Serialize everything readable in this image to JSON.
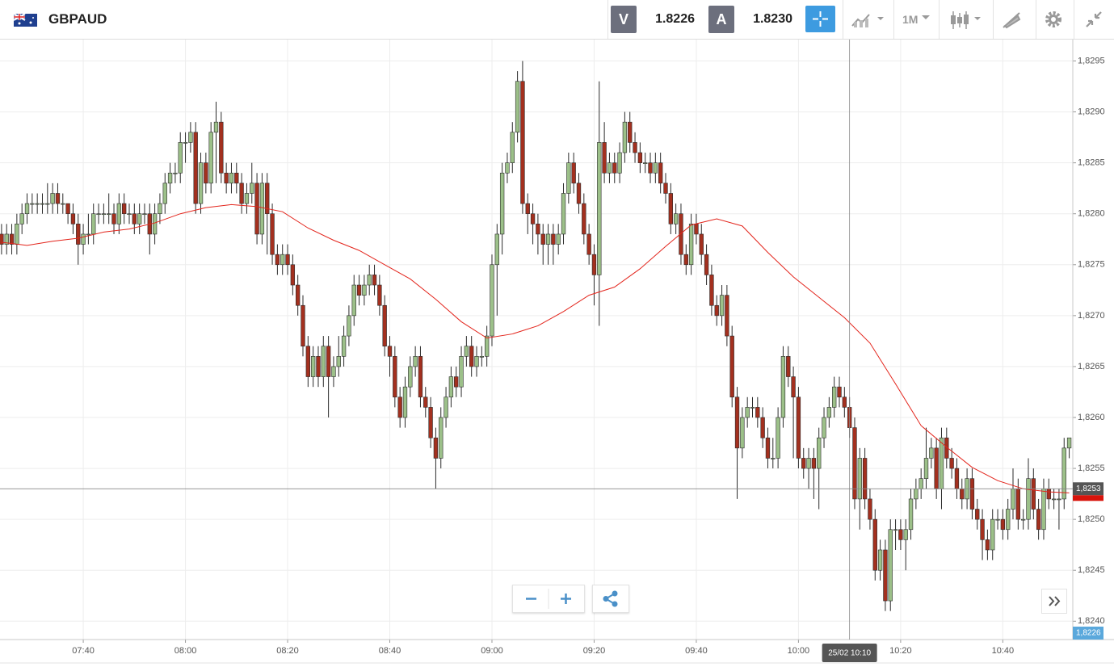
{
  "header": {
    "symbol": "GBPAUD",
    "sell_letter": "V",
    "sell_price": "1.8226",
    "buy_letter": "A",
    "buy_price": "1.8230",
    "timeframe": "1M"
  },
  "chart_data": {
    "type": "candlestick",
    "x": [
      444,
      445,
      446,
      447,
      448,
      449,
      450,
      451,
      452,
      453,
      454,
      455,
      456,
      457,
      458,
      459,
      460,
      461,
      462,
      463,
      464,
      465,
      466,
      467,
      468,
      469,
      470,
      471,
      472,
      473,
      474,
      475,
      476,
      477,
      478,
      479,
      480,
      481,
      482,
      483,
      484,
      485,
      486,
      487,
      488,
      489,
      490,
      491,
      492,
      493,
      494,
      495,
      496,
      497,
      498,
      499,
      500,
      501,
      502,
      503,
      504,
      505,
      506,
      507,
      508,
      509,
      510,
      511,
      512,
      513,
      514,
      515,
      516,
      517,
      518,
      519,
      520,
      521,
      522,
      523,
      524,
      525,
      526,
      527,
      528,
      529,
      530,
      531,
      532,
      533,
      534,
      535,
      536,
      537,
      538,
      539,
      540,
      541,
      542,
      543,
      544,
      545,
      546,
      547,
      548,
      549,
      550,
      551,
      552,
      553,
      554,
      555,
      556,
      557,
      558,
      559,
      560,
      561,
      562,
      563,
      564,
      565,
      566,
      567,
      568,
      569,
      570,
      571,
      572,
      573,
      574,
      575,
      576,
      577,
      578,
      579,
      580,
      581,
      582,
      583,
      584,
      585,
      586,
      587,
      588,
      589,
      590,
      591,
      592,
      593,
      594,
      595,
      596,
      597,
      598,
      599,
      600,
      601,
      602,
      603,
      604,
      605,
      606,
      607,
      608,
      609,
      610,
      611,
      612,
      613,
      614,
      615,
      616,
      617,
      618,
      619,
      620,
      621,
      622,
      623,
      624,
      625,
      626,
      627,
      628,
      629,
      630,
      631,
      632,
      633,
      634,
      635,
      636,
      637,
      638,
      639,
      640,
      641,
      642,
      643,
      644,
      645,
      646,
      647,
      648,
      649,
      650,
      651,
      652,
      653
    ],
    "open": [
      1.8278,
      1.8277,
      1.8278,
      1.8277,
      1.8279,
      1.828,
      1.8281,
      1.8281,
      1.8281,
      1.8281,
      1.8281,
      1.8282,
      1.8281,
      1.8281,
      1.828,
      1.8279,
      1.8277,
      1.8278,
      1.8278,
      1.828,
      1.828,
      1.828,
      1.828,
      1.8279,
      1.8281,
      1.828,
      1.828,
      1.8279,
      1.828,
      1.828,
      1.8278,
      1.828,
      1.8281,
      1.8283,
      1.8284,
      1.8284,
      1.8287,
      1.8287,
      1.8288,
      1.8281,
      1.8285,
      1.8283,
      1.8288,
      1.8289,
      1.8284,
      1.8283,
      1.8284,
      1.8283,
      1.8281,
      1.8282,
      1.8283,
      1.8278,
      1.8283,
      1.828,
      1.8276,
      1.8275,
      1.8276,
      1.8275,
      1.8273,
      1.8271,
      1.8267,
      1.8264,
      1.8266,
      1.8264,
      1.8267,
      1.8264,
      1.8265,
      1.8266,
      1.8268,
      1.827,
      1.8273,
      1.8272,
      1.8273,
      1.8274,
      1.8273,
      1.8271,
      1.8267,
      1.8266,
      1.8262,
      1.826,
      1.8263,
      1.8265,
      1.8266,
      1.8262,
      1.8261,
      1.8258,
      1.8256,
      1.826,
      1.8262,
      1.8264,
      1.8263,
      1.8266,
      1.8267,
      1.8265,
      1.8266,
      1.8266,
      1.8268,
      1.8275,
      1.8278,
      1.8284,
      1.8285,
      1.8288,
      1.8293,
      1.8281,
      1.828,
      1.8279,
      1.8278,
      1.8277,
      1.8278,
      1.8277,
      1.8278,
      1.8282,
      1.8285,
      1.8283,
      1.8281,
      1.8278,
      1.8276,
      1.8274,
      1.8287,
      1.8284,
      1.8285,
      1.8284,
      1.8286,
      1.8289,
      1.8287,
      1.8286,
      1.8285,
      1.8285,
      1.8284,
      1.8285,
      1.8283,
      1.8282,
      1.8279,
      1.828,
      1.8276,
      1.8275,
      1.8279,
      1.8278,
      1.8276,
      1.8274,
      1.8271,
      1.827,
      1.8272,
      1.8268,
      1.8262,
      1.8257,
      1.826,
      1.8261,
      1.8261,
      1.826,
      1.8258,
      1.8256,
      1.8256,
      1.826,
      1.8266,
      1.8264,
      1.8262,
      1.8256,
      1.8255,
      1.8256,
      1.8255,
      1.8258,
      1.826,
      1.8261,
      1.8263,
      1.8262,
      1.8261,
      1.8259,
      1.8252,
      1.8256,
      1.8252,
      1.825,
      1.8245,
      1.8247,
      1.8242,
      1.8249,
      1.8249,
      1.8248,
      1.8249,
      1.8252,
      1.8253,
      1.8254,
      1.8256,
      1.8257,
      1.8253,
      1.8258,
      1.8256,
      1.8255,
      1.8253,
      1.8252,
      1.8254,
      1.8251,
      1.825,
      1.8248,
      1.8247,
      1.825,
      1.825,
      1.8249,
      1.8251,
      1.8253,
      1.825,
      1.825,
      1.8254,
      1.8251,
      1.8249,
      1.8253,
      1.8252,
      1.8252,
      1.8252,
      1.8257
    ],
    "high": [
      1.8279,
      1.8279,
      1.8279,
      1.828,
      1.8281,
      1.8282,
      1.8282,
      1.8282,
      1.8282,
      1.8283,
      1.8283,
      1.8283,
      1.8282,
      1.8281,
      1.8281,
      1.828,
      1.8279,
      1.828,
      1.8281,
      1.8281,
      1.8281,
      1.8282,
      1.8281,
      1.8282,
      1.8282,
      1.8281,
      1.8281,
      1.8281,
      1.8281,
      1.8281,
      1.8281,
      1.8282,
      1.8284,
      1.8285,
      1.8285,
      1.8288,
      1.8288,
      1.8289,
      1.8289,
      1.8286,
      1.8286,
      1.8289,
      1.8291,
      1.829,
      1.8285,
      1.8285,
      1.8285,
      1.8284,
      1.8283,
      1.8285,
      1.8284,
      1.8284,
      1.8284,
      1.8281,
      1.8277,
      1.8277,
      1.8277,
      1.8276,
      1.8274,
      1.8272,
      1.8268,
      1.8267,
      1.8267,
      1.8268,
      1.8268,
      1.8266,
      1.8268,
      1.8269,
      1.8271,
      1.8274,
      1.8274,
      1.8274,
      1.8275,
      1.8275,
      1.8274,
      1.8272,
      1.8268,
      1.8267,
      1.8263,
      1.8264,
      1.8266,
      1.8267,
      1.8267,
      1.8263,
      1.8262,
      1.8259,
      1.8261,
      1.8263,
      1.8265,
      1.8265,
      1.8267,
      1.8268,
      1.8268,
      1.8267,
      1.8267,
      1.8269,
      1.8276,
      1.8279,
      1.8285,
      1.8286,
      1.8289,
      1.8294,
      1.8295,
      1.8282,
      1.8281,
      1.828,
      1.8279,
      1.8279,
      1.8279,
      1.8279,
      1.8283,
      1.8286,
      1.8286,
      1.8284,
      1.8282,
      1.8279,
      1.8277,
      1.8293,
      1.8289,
      1.8286,
      1.8286,
      1.8287,
      1.829,
      1.829,
      1.8288,
      1.8287,
      1.8286,
      1.8286,
      1.8286,
      1.8286,
      1.8284,
      1.8283,
      1.8281,
      1.8281,
      1.8277,
      1.828,
      1.828,
      1.8279,
      1.8277,
      1.8275,
      1.8272,
      1.8273,
      1.8273,
      1.8269,
      1.8263,
      1.8261,
      1.8262,
      1.8262,
      1.8262,
      1.8261,
      1.8259,
      1.8258,
      1.8261,
      1.8267,
      1.8267,
      1.8265,
      1.8263,
      1.8257,
      1.8257,
      1.8257,
      1.8259,
      1.8261,
      1.8262,
      1.8264,
      1.8264,
      1.8263,
      1.8262,
      1.826,
      1.8257,
      1.8257,
      1.8253,
      1.8251,
      1.8248,
      1.8248,
      1.825,
      1.825,
      1.825,
      1.825,
      1.8253,
      1.8254,
      1.8255,
      1.8259,
      1.8258,
      1.8258,
      1.8259,
      1.8259,
      1.8257,
      1.8256,
      1.8254,
      1.8255,
      1.8255,
      1.8252,
      1.8251,
      1.8249,
      1.8251,
      1.8251,
      1.8251,
      1.8252,
      1.8255,
      1.8254,
      1.8251,
      1.8256,
      1.8255,
      1.8252,
      1.8254,
      1.8254,
      1.8253,
      1.8253,
      1.8258,
      1.8258
    ],
    "low": [
      1.8276,
      1.8276,
      1.8276,
      1.8276,
      1.8278,
      1.8279,
      1.828,
      1.828,
      1.828,
      1.828,
      1.828,
      1.828,
      1.828,
      1.8279,
      1.8278,
      1.8275,
      1.8276,
      1.8277,
      1.8277,
      1.8279,
      1.8279,
      1.8279,
      1.8278,
      1.8278,
      1.8279,
      1.8279,
      1.8278,
      1.8278,
      1.8279,
      1.8276,
      1.8277,
      1.8279,
      1.828,
      1.8282,
      1.8283,
      1.8283,
      1.8285,
      1.8286,
      1.828,
      1.828,
      1.8282,
      1.8282,
      1.8283,
      1.8283,
      1.8282,
      1.8282,
      1.8282,
      1.828,
      1.828,
      1.8281,
      1.8277,
      1.8277,
      1.8276,
      1.8275,
      1.8274,
      1.8274,
      1.8274,
      1.8272,
      1.827,
      1.8266,
      1.8263,
      1.8263,
      1.8263,
      1.8263,
      1.826,
      1.8263,
      1.8264,
      1.8265,
      1.8267,
      1.8269,
      1.8271,
      1.8271,
      1.8272,
      1.8272,
      1.827,
      1.8266,
      1.8264,
      1.8261,
      1.8259,
      1.8259,
      1.8262,
      1.8264,
      1.8261,
      1.826,
      1.8257,
      1.8253,
      1.8255,
      1.8259,
      1.8261,
      1.8262,
      1.8262,
      1.8265,
      1.8264,
      1.8264,
      1.8265,
      1.8265,
      1.8267,
      1.827,
      1.8276,
      1.8283,
      1.8284,
      1.8287,
      1.828,
      1.8278,
      1.8277,
      1.8276,
      1.8275,
      1.8275,
      1.8275,
      1.8276,
      1.8277,
      1.8281,
      1.8282,
      1.828,
      1.8277,
      1.8275,
      1.8271,
      1.8269,
      1.8283,
      1.8283,
      1.8283,
      1.8283,
      1.8285,
      1.8286,
      1.8285,
      1.8284,
      1.8284,
      1.8283,
      1.8283,
      1.8282,
      1.8281,
      1.8278,
      1.8278,
      1.8275,
      1.8274,
      1.8274,
      1.8277,
      1.8275,
      1.8273,
      1.827,
      1.8269,
      1.8269,
      1.8267,
      1.8261,
      1.8252,
      1.8256,
      1.8259,
      1.826,
      1.8259,
      1.8257,
      1.8255,
      1.8255,
      1.8255,
      1.8259,
      1.8263,
      1.8256,
      1.8255,
      1.8254,
      1.8253,
      1.8252,
      1.8251,
      1.8257,
      1.8259,
      1.826,
      1.8261,
      1.826,
      1.8258,
      1.8251,
      1.8249,
      1.8251,
      1.8249,
      1.8244,
      1.8244,
      1.8241,
      1.8241,
      1.8247,
      1.8247,
      1.8245,
      1.8248,
      1.8251,
      1.8252,
      1.8253,
      1.8255,
      1.8252,
      1.8251,
      1.8255,
      1.8254,
      1.8252,
      1.8251,
      1.8251,
      1.825,
      1.8249,
      1.8246,
      1.8246,
      1.8246,
      1.8249,
      1.8248,
      1.8248,
      1.825,
      1.8249,
      1.8249,
      1.8249,
      1.825,
      1.8248,
      1.8248,
      1.8251,
      1.8251,
      1.8249,
      1.8251,
      1.8256
    ],
    "close": [
      1.8277,
      1.8278,
      1.8277,
      1.8279,
      1.828,
      1.8281,
      1.8281,
      1.8281,
      1.8281,
      1.8281,
      1.8282,
      1.8281,
      1.8281,
      1.828,
      1.8279,
      1.8277,
      1.8278,
      1.8278,
      1.828,
      1.828,
      1.828,
      1.828,
      1.8279,
      1.8281,
      1.828,
      1.828,
      1.8279,
      1.828,
      1.828,
      1.8278,
      1.828,
      1.8281,
      1.8283,
      1.8284,
      1.8284,
      1.8287,
      1.8287,
      1.8288,
      1.8281,
      1.8285,
      1.8283,
      1.8288,
      1.8289,
      1.8284,
      1.8283,
      1.8284,
      1.8283,
      1.8281,
      1.8282,
      1.8283,
      1.8278,
      1.8283,
      1.828,
      1.8276,
      1.8275,
      1.8276,
      1.8275,
      1.8273,
      1.8271,
      1.8267,
      1.8264,
      1.8266,
      1.8264,
      1.8267,
      1.8264,
      1.8265,
      1.8266,
      1.8268,
      1.827,
      1.8273,
      1.8272,
      1.8273,
      1.8274,
      1.8273,
      1.8271,
      1.8267,
      1.8266,
      1.8262,
      1.826,
      1.8263,
      1.8265,
      1.8266,
      1.8262,
      1.8261,
      1.8258,
      1.8256,
      1.826,
      1.8262,
      1.8264,
      1.8263,
      1.8266,
      1.8267,
      1.8265,
      1.8266,
      1.8266,
      1.8268,
      1.8275,
      1.8278,
      1.8284,
      1.8285,
      1.8288,
      1.8293,
      1.8281,
      1.828,
      1.8279,
      1.8278,
      1.8277,
      1.8278,
      1.8277,
      1.8278,
      1.8282,
      1.8285,
      1.8283,
      1.8281,
      1.8278,
      1.8276,
      1.8274,
      1.8287,
      1.8284,
      1.8285,
      1.8284,
      1.8286,
      1.8289,
      1.8287,
      1.8286,
      1.8285,
      1.8285,
      1.8284,
      1.8285,
      1.8283,
      1.8282,
      1.8279,
      1.828,
      1.8276,
      1.8275,
      1.8279,
      1.8278,
      1.8276,
      1.8274,
      1.8271,
      1.827,
      1.8272,
      1.8268,
      1.8262,
      1.8257,
      1.826,
      1.8261,
      1.8261,
      1.826,
      1.8258,
      1.8256,
      1.8256,
      1.826,
      1.8266,
      1.8264,
      1.8262,
      1.8256,
      1.8255,
      1.8256,
      1.8255,
      1.8258,
      1.826,
      1.8261,
      1.8263,
      1.8262,
      1.8261,
      1.8259,
      1.8252,
      1.8256,
      1.8252,
      1.825,
      1.8245,
      1.8247,
      1.8242,
      1.8249,
      1.8249,
      1.8248,
      1.8249,
      1.8252,
      1.8253,
      1.8254,
      1.8256,
      1.8257,
      1.8253,
      1.8258,
      1.8256,
      1.8255,
      1.8253,
      1.8252,
      1.8254,
      1.8251,
      1.825,
      1.8248,
      1.8247,
      1.825,
      1.825,
      1.8249,
      1.8251,
      1.8253,
      1.825,
      1.825,
      1.8254,
      1.8251,
      1.8249,
      1.8253,
      1.8252,
      1.8252,
      1.8252,
      1.8257,
      1.8258
    ],
    "up_color": "#9cc089",
    "down_color": "#a3301f",
    "wick_color": "#2b2b2b",
    "ma": {
      "color": "#e3241b",
      "x": [
        444,
        449,
        454,
        459,
        464,
        469,
        474,
        479,
        484,
        489,
        494,
        499,
        504,
        509,
        514,
        519,
        524,
        529,
        534,
        539,
        544,
        549,
        554,
        559,
        564,
        569,
        574,
        579,
        584,
        589,
        594,
        599,
        604,
        609,
        614,
        619,
        624,
        629,
        634,
        639,
        644,
        649,
        653
      ],
      "values": [
        1.82772,
        1.82769,
        1.82773,
        1.82776,
        1.82782,
        1.82785,
        1.82791,
        1.828,
        1.82806,
        1.82809,
        1.82807,
        1.82802,
        1.82786,
        1.82774,
        1.82764,
        1.8275,
        1.82736,
        1.82716,
        1.82694,
        1.82678,
        1.82682,
        1.8269,
        1.82704,
        1.8272,
        1.82728,
        1.82746,
        1.82768,
        1.82789,
        1.82795,
        1.82788,
        1.82762,
        1.82738,
        1.82718,
        1.82698,
        1.82673,
        1.82633,
        1.82592,
        1.82571,
        1.82551,
        1.82538,
        1.8253,
        1.82527,
        1.82526
      ]
    },
    "xlim": [
      443.7,
      653.7
    ],
    "xticks": [
      {
        "value": 460,
        "label": "07:40"
      },
      {
        "value": 480,
        "label": "08:00"
      },
      {
        "value": 500,
        "label": "08:20"
      },
      {
        "value": 520,
        "label": "08:40"
      },
      {
        "value": 540,
        "label": "09:00"
      },
      {
        "value": 560,
        "label": "09:20"
      },
      {
        "value": 580,
        "label": "09:40"
      },
      {
        "value": 600,
        "label": "10:00"
      },
      {
        "value": 620,
        "label": "10:20"
      },
      {
        "value": 640,
        "label": "10:40"
      }
    ],
    "ylim": [
      1.82382,
      1.82971
    ],
    "yticks": [
      {
        "value": 1.8295,
        "label": "1,8295"
      },
      {
        "value": 1.829,
        "label": "1,8290"
      },
      {
        "value": 1.8285,
        "label": "1,8285"
      },
      {
        "value": 1.828,
        "label": "1,8280"
      },
      {
        "value": 1.8275,
        "label": "1,8275"
      },
      {
        "value": 1.827,
        "label": "1,8270"
      },
      {
        "value": 1.8265,
        "label": "1,8265"
      },
      {
        "value": 1.826,
        "label": "1,8260"
      },
      {
        "value": 1.8255,
        "label": "1,8255"
      },
      {
        "value": 1.825,
        "label": "1,8250"
      },
      {
        "value": 1.8245,
        "label": "1,8245"
      },
      {
        "value": 1.824,
        "label": "1,8240"
      }
    ],
    "grid": true
  },
  "crosshair": {
    "x": 610,
    "x_label": "25/02 10:10",
    "y": {
      "value": 1.8253,
      "label": "1,8253"
    }
  },
  "bid_tag": "1,8226"
}
